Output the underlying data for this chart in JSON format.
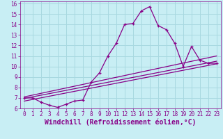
{
  "xlabel": "Windchill (Refroidissement éolien,°C)",
  "bg_color": "#c8eef4",
  "line_color": "#880088",
  "xlim": [
    -0.5,
    23.5
  ],
  "ylim": [
    6,
    16.2
  ],
  "xticks": [
    0,
    1,
    2,
    3,
    4,
    5,
    6,
    7,
    8,
    9,
    10,
    11,
    12,
    13,
    14,
    15,
    16,
    17,
    18,
    19,
    20,
    21,
    22,
    23
  ],
  "yticks": [
    6,
    7,
    8,
    9,
    10,
    11,
    12,
    13,
    14,
    15,
    16
  ],
  "jagged_x": [
    0,
    1,
    2,
    3,
    4,
    5,
    6,
    7,
    8,
    9,
    10,
    11,
    12,
    13,
    14,
    15,
    16,
    17,
    18,
    19,
    20,
    21,
    22,
    23
  ],
  "jagged_y": [
    7.0,
    7.0,
    6.6,
    6.3,
    6.1,
    6.4,
    6.7,
    6.8,
    8.5,
    9.4,
    11.0,
    12.2,
    14.0,
    14.1,
    15.3,
    15.7,
    13.9,
    13.5,
    12.2,
    10.0,
    11.9,
    10.6,
    10.3,
    10.3
  ],
  "line2_x": [
    0,
    23
  ],
  "line2_y": [
    6.95,
    10.5
  ],
  "line3_x": [
    0,
    23
  ],
  "line3_y": [
    7.1,
    11.0
  ],
  "line4_x": [
    0,
    23
  ],
  "line4_y": [
    6.7,
    10.25
  ],
  "grid_color": "#a8d8e0",
  "tick_fontsize": 5.5,
  "xlabel_fontsize": 7.0
}
